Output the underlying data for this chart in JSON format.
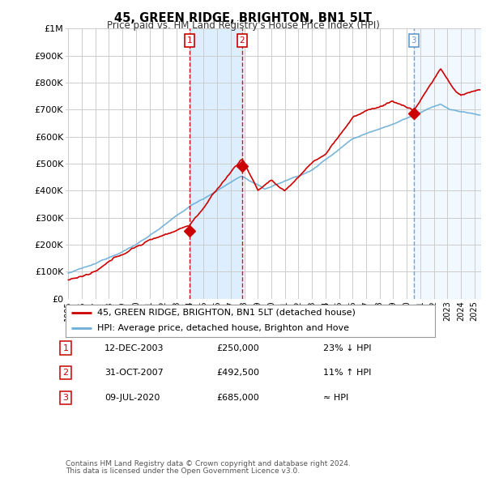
{
  "title": "45, GREEN RIDGE, BRIGHTON, BN1 5LT",
  "subtitle": "Price paid vs. HM Land Registry's House Price Index (HPI)",
  "legend_line1": "45, GREEN RIDGE, BRIGHTON, BN1 5LT (detached house)",
  "legend_line2": "HPI: Average price, detached house, Brighton and Hove",
  "footer1": "Contains HM Land Registry data © Crown copyright and database right 2024.",
  "footer2": "This data is licensed under the Open Government Licence v3.0.",
  "transactions": [
    {
      "num": 1,
      "date": "12-DEC-2003",
      "price": "£250,000",
      "hpi": "23% ↓ HPI"
    },
    {
      "num": 2,
      "date": "31-OCT-2007",
      "price": "£492,500",
      "hpi": "11% ↑ HPI"
    },
    {
      "num": 3,
      "date": "09-JUL-2020",
      "price": "£685,000",
      "hpi": "≈ HPI"
    }
  ],
  "sale_years": [
    2003.95,
    2007.83,
    2020.52
  ],
  "sale_prices": [
    250000,
    492500,
    685000
  ],
  "ylim": [
    0,
    1000000
  ],
  "yticks": [
    0,
    100000,
    200000,
    300000,
    400000,
    500000,
    600000,
    700000,
    800000,
    900000,
    1000000
  ],
  "ytick_labels": [
    "£0",
    "£100K",
    "£200K",
    "£300K",
    "£400K",
    "£500K",
    "£600K",
    "£700K",
    "£800K",
    "£900K",
    "£1M"
  ],
  "xlim_start": 1994.8,
  "xlim_end": 2025.5,
  "hpi_color": "#6baed6",
  "price_color": "#cc0000",
  "vline_color_red": "#cc0000",
  "vline_color_blue": "#6699cc",
  "bg_chart": "#ffffff",
  "bg_shaded": "#ddeeff",
  "grid_color": "#cccccc"
}
